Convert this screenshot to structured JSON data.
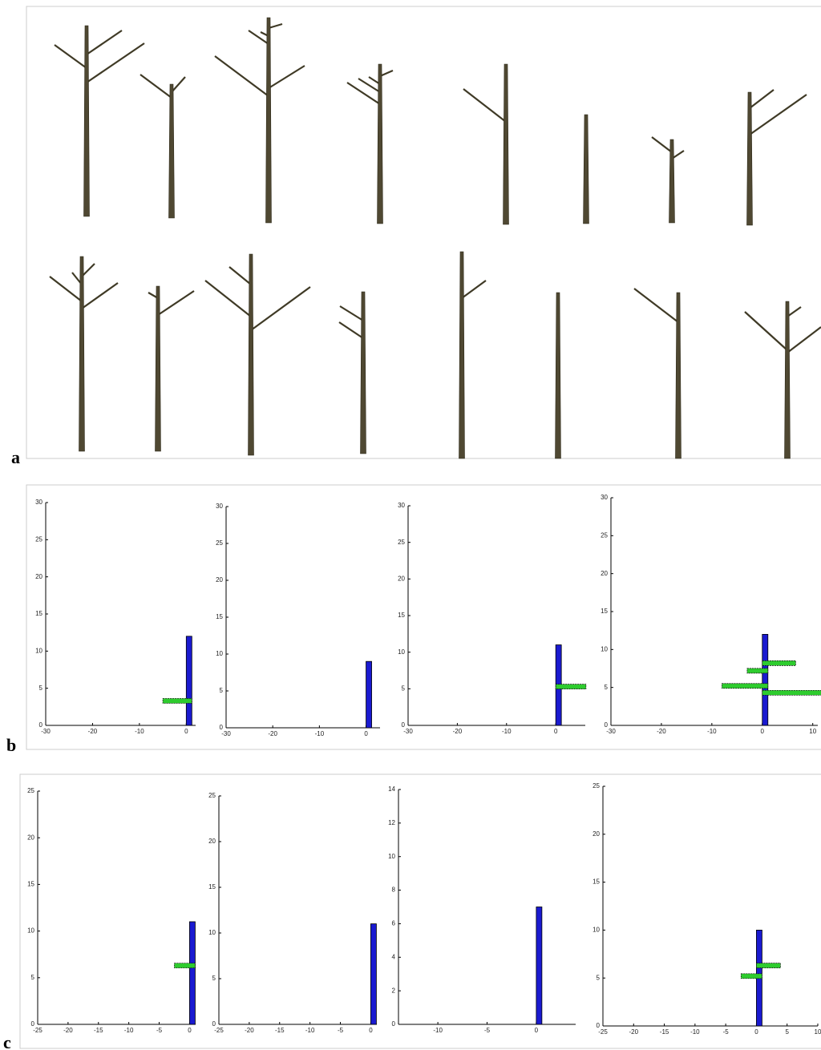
{
  "labels": [
    "a",
    "b",
    "c"
  ],
  "chart_data": [
    {
      "type": "tree-profile",
      "xlim": [
        -30,
        2
      ],
      "xticks": [
        -30,
        -20,
        -10,
        0
      ],
      "ylim": [
        0,
        30
      ],
      "yticks": [
        0,
        5,
        10,
        15,
        20,
        25,
        30
      ],
      "trunk": {
        "color": "#1a1ad0",
        "height": 12
      },
      "branches": {
        "color": "#2ecc2e",
        "heights": [
          3.3
        ],
        "starts": [
          -5
        ],
        "ends": [
          0
        ]
      }
    },
    {
      "type": "tree-profile",
      "xlim": [
        -30,
        3
      ],
      "xticks": [
        -30,
        -20,
        -10,
        0
      ],
      "ylim": [
        0,
        30
      ],
      "yticks": [
        0,
        5,
        10,
        15,
        20,
        25,
        30
      ],
      "trunk": {
        "color": "#1a1ad0",
        "height": 9
      },
      "branches": {
        "color": "#2ecc2e",
        "heights": [],
        "starts": [],
        "ends": []
      }
    },
    {
      "type": "tree-profile",
      "xlim": [
        -30,
        6
      ],
      "xticks": [
        -30,
        -20,
        -10,
        0
      ],
      "ylim": [
        0,
        30
      ],
      "yticks": [
        0,
        5,
        10,
        15,
        20,
        25,
        30
      ],
      "trunk": {
        "color": "#1a1ad0",
        "height": 11
      },
      "branches": {
        "color": "#2ecc2e",
        "heights": [
          5.3
        ],
        "starts": [
          0
        ],
        "ends": [
          5
        ]
      }
    },
    {
      "type": "tree-profile",
      "xlim": [
        -30,
        11
      ],
      "xticks": [
        -30,
        -20,
        -10,
        0,
        10
      ],
      "ylim": [
        0,
        30
      ],
      "yticks": [
        0,
        5,
        10,
        15,
        20,
        25,
        30
      ],
      "trunk": {
        "color": "#1a1ad0",
        "height": 12
      },
      "branches": {
        "color": "#2ecc2e",
        "heights": [
          8.2,
          7.2,
          5.2,
          4.3
        ],
        "starts": [
          0,
          -3,
          -8,
          0
        ],
        "ends": [
          5.5,
          0,
          0,
          11
        ]
      }
    },
    {
      "type": "tree-profile",
      "xlim": [
        -25,
        1
      ],
      "xticks": [
        -25,
        -20,
        -15,
        -10,
        -5,
        0
      ],
      "ylim": [
        0,
        25
      ],
      "yticks": [
        0,
        5,
        10,
        15,
        20,
        25
      ],
      "trunk": {
        "color": "#1a1ad0",
        "height": 11
      },
      "branches": {
        "color": "#2ecc2e",
        "heights": [
          6.3
        ],
        "starts": [
          -2.5
        ],
        "ends": [
          0
        ]
      }
    },
    {
      "type": "tree-profile",
      "xlim": [
        -25,
        1
      ],
      "xticks": [
        -25,
        -20,
        -15,
        -10,
        -5,
        0
      ],
      "ylim": [
        0,
        25
      ],
      "yticks": [
        0,
        5,
        10,
        15,
        20,
        25
      ],
      "trunk": {
        "color": "#1a1ad0",
        "height": 11
      },
      "branches": {
        "color": "#2ecc2e",
        "heights": [],
        "starts": [],
        "ends": []
      }
    },
    {
      "type": "tree-profile",
      "xlim": [
        -14,
        4
      ],
      "xticks": [
        -10,
        -5,
        0
      ],
      "ylim": [
        0,
        14
      ],
      "yticks": [
        0,
        2,
        4,
        6,
        8,
        10,
        12,
        14
      ],
      "trunk": {
        "color": "#1a1ad0",
        "height": 7
      },
      "branches": {
        "color": "#2ecc2e",
        "heights": [],
        "starts": [],
        "ends": []
      }
    },
    {
      "type": "tree-profile",
      "xlim": [
        -25,
        10
      ],
      "xticks": [
        -25,
        -20,
        -15,
        -10,
        -5,
        0,
        5,
        10
      ],
      "ylim": [
        0,
        25
      ],
      "yticks": [
        0,
        5,
        10,
        15,
        20,
        25
      ],
      "trunk": {
        "color": "#1a1ad0",
        "height": 10
      },
      "branches": {
        "color": "#2ecc2e",
        "heights": [
          6.3,
          5.2
        ],
        "starts": [
          0,
          -2.5
        ],
        "ends": [
          3,
          0
        ]
      }
    }
  ]
}
